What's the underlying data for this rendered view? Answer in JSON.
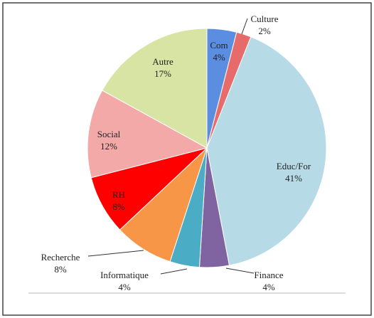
{
  "chart_data": {
    "type": "pie",
    "categories": [
      "Com",
      "Culture",
      "Educ/For",
      "Finance",
      "Informatique",
      "Recherche",
      "RH",
      "Social",
      "Autre"
    ],
    "values": [
      4,
      2,
      41,
      4,
      4,
      8,
      8,
      12,
      17
    ],
    "value_labels": [
      "4%",
      "2%",
      "41%",
      "4%",
      "4%",
      "8%",
      "8%",
      "12%",
      "17%"
    ],
    "colors": [
      "#5b8ee0",
      "#e86b6b",
      "#b7dbe6",
      "#8064a2",
      "#4bacc6",
      "#f79646",
      "#ff0000",
      "#f4a9a9",
      "#d7e4a4"
    ]
  }
}
